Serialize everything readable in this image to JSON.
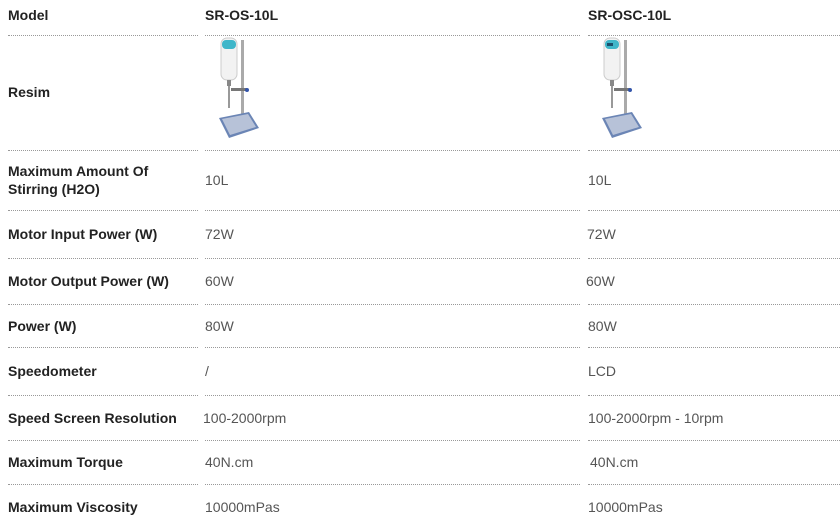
{
  "table": {
    "header": [
      "Model",
      "SR-OS-10L",
      "SR-OSC-10L"
    ],
    "image_row_label": "Resim",
    "rows": [
      [
        "Maximum Amount Of Stirring (H2O)",
        "10L",
        "10L"
      ],
      [
        "Motor Input Power (W)",
        "72W",
        "72W"
      ],
      [
        "Motor Output Power (W)",
        "60W",
        "60W"
      ],
      [
        "Power (W)",
        "80W",
        "80W"
      ],
      [
        "Speedometer",
        "/",
        "LCD"
      ],
      [
        "Speed Screen Resolution",
        "100-2000rpm",
        "100-2000rpm - 10rpm"
      ],
      [
        "Maximum Torque",
        "40N.cm",
        "40N.cm"
      ],
      [
        "Maximum Viscosity",
        "10000mPas",
        "10000mPas"
      ]
    ]
  }
}
